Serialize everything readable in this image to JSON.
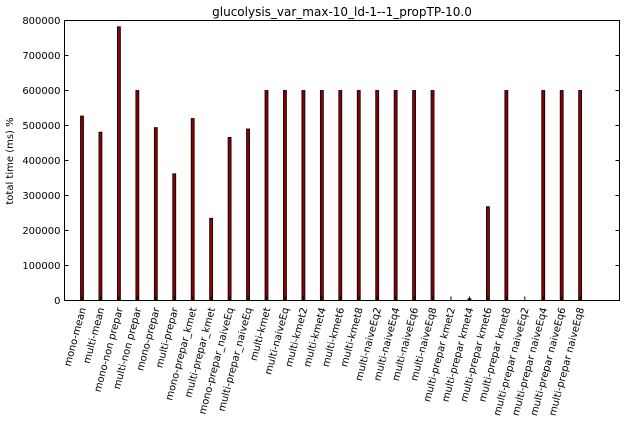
{
  "chart_data": {
    "type": "bar",
    "title": "glucolysis_var_max-10_ld-1--1_propTP-10.0",
    "xlabel": "",
    "ylabel": "total time (ms) %",
    "ylim": [
      0,
      800000
    ],
    "yticks": [
      0,
      100000,
      200000,
      300000,
      400000,
      500000,
      600000,
      700000,
      800000
    ],
    "ytick_labels": [
      "0",
      "100000",
      "200000",
      "300000",
      "400000",
      "500000",
      "600000",
      "700000",
      "800000"
    ],
    "grid": false,
    "legend": "none",
    "bar_color": "#8b0000",
    "bar_edge_color": "#000000",
    "categories": [
      "mono-mean",
      "multi-mean",
      "mono-non prepar",
      "multi-non prepar",
      "mono-prepar",
      "multi-prepar",
      "mono-prepar_kmet",
      "multi-prepar_kmet",
      "mono-prepar_naiveEq",
      "multi-prepar_naiveEq",
      "multi-kmet",
      "multi-naiveEq",
      "multi-kmet2",
      "multi-kmet4",
      "multi-kmet6",
      "multi-kmet8",
      "multi-naiveEq2",
      "multi-naiveEq4",
      "multi-naiveEq6",
      "multi-naiveEq8",
      "multi-prepar kmet2",
      "multi-prepar kmet4",
      "multi-prepar kmet6",
      "multi-prepar kmet8",
      "multi-prepar naiveEq2",
      "multi-prepar naiveEq4",
      "multi-prepar naiveEq6",
      "multi-prepar naiveEq8"
    ],
    "values": [
      527000,
      481000,
      782000,
      600000,
      494000,
      362000,
      520000,
      235000,
      466000,
      490000,
      600000,
      600000,
      600000,
      600000,
      600000,
      600000,
      600000,
      600000,
      600000,
      600000,
      0,
      5000,
      268000,
      600000,
      0,
      600000,
      600000,
      600000
    ]
  }
}
